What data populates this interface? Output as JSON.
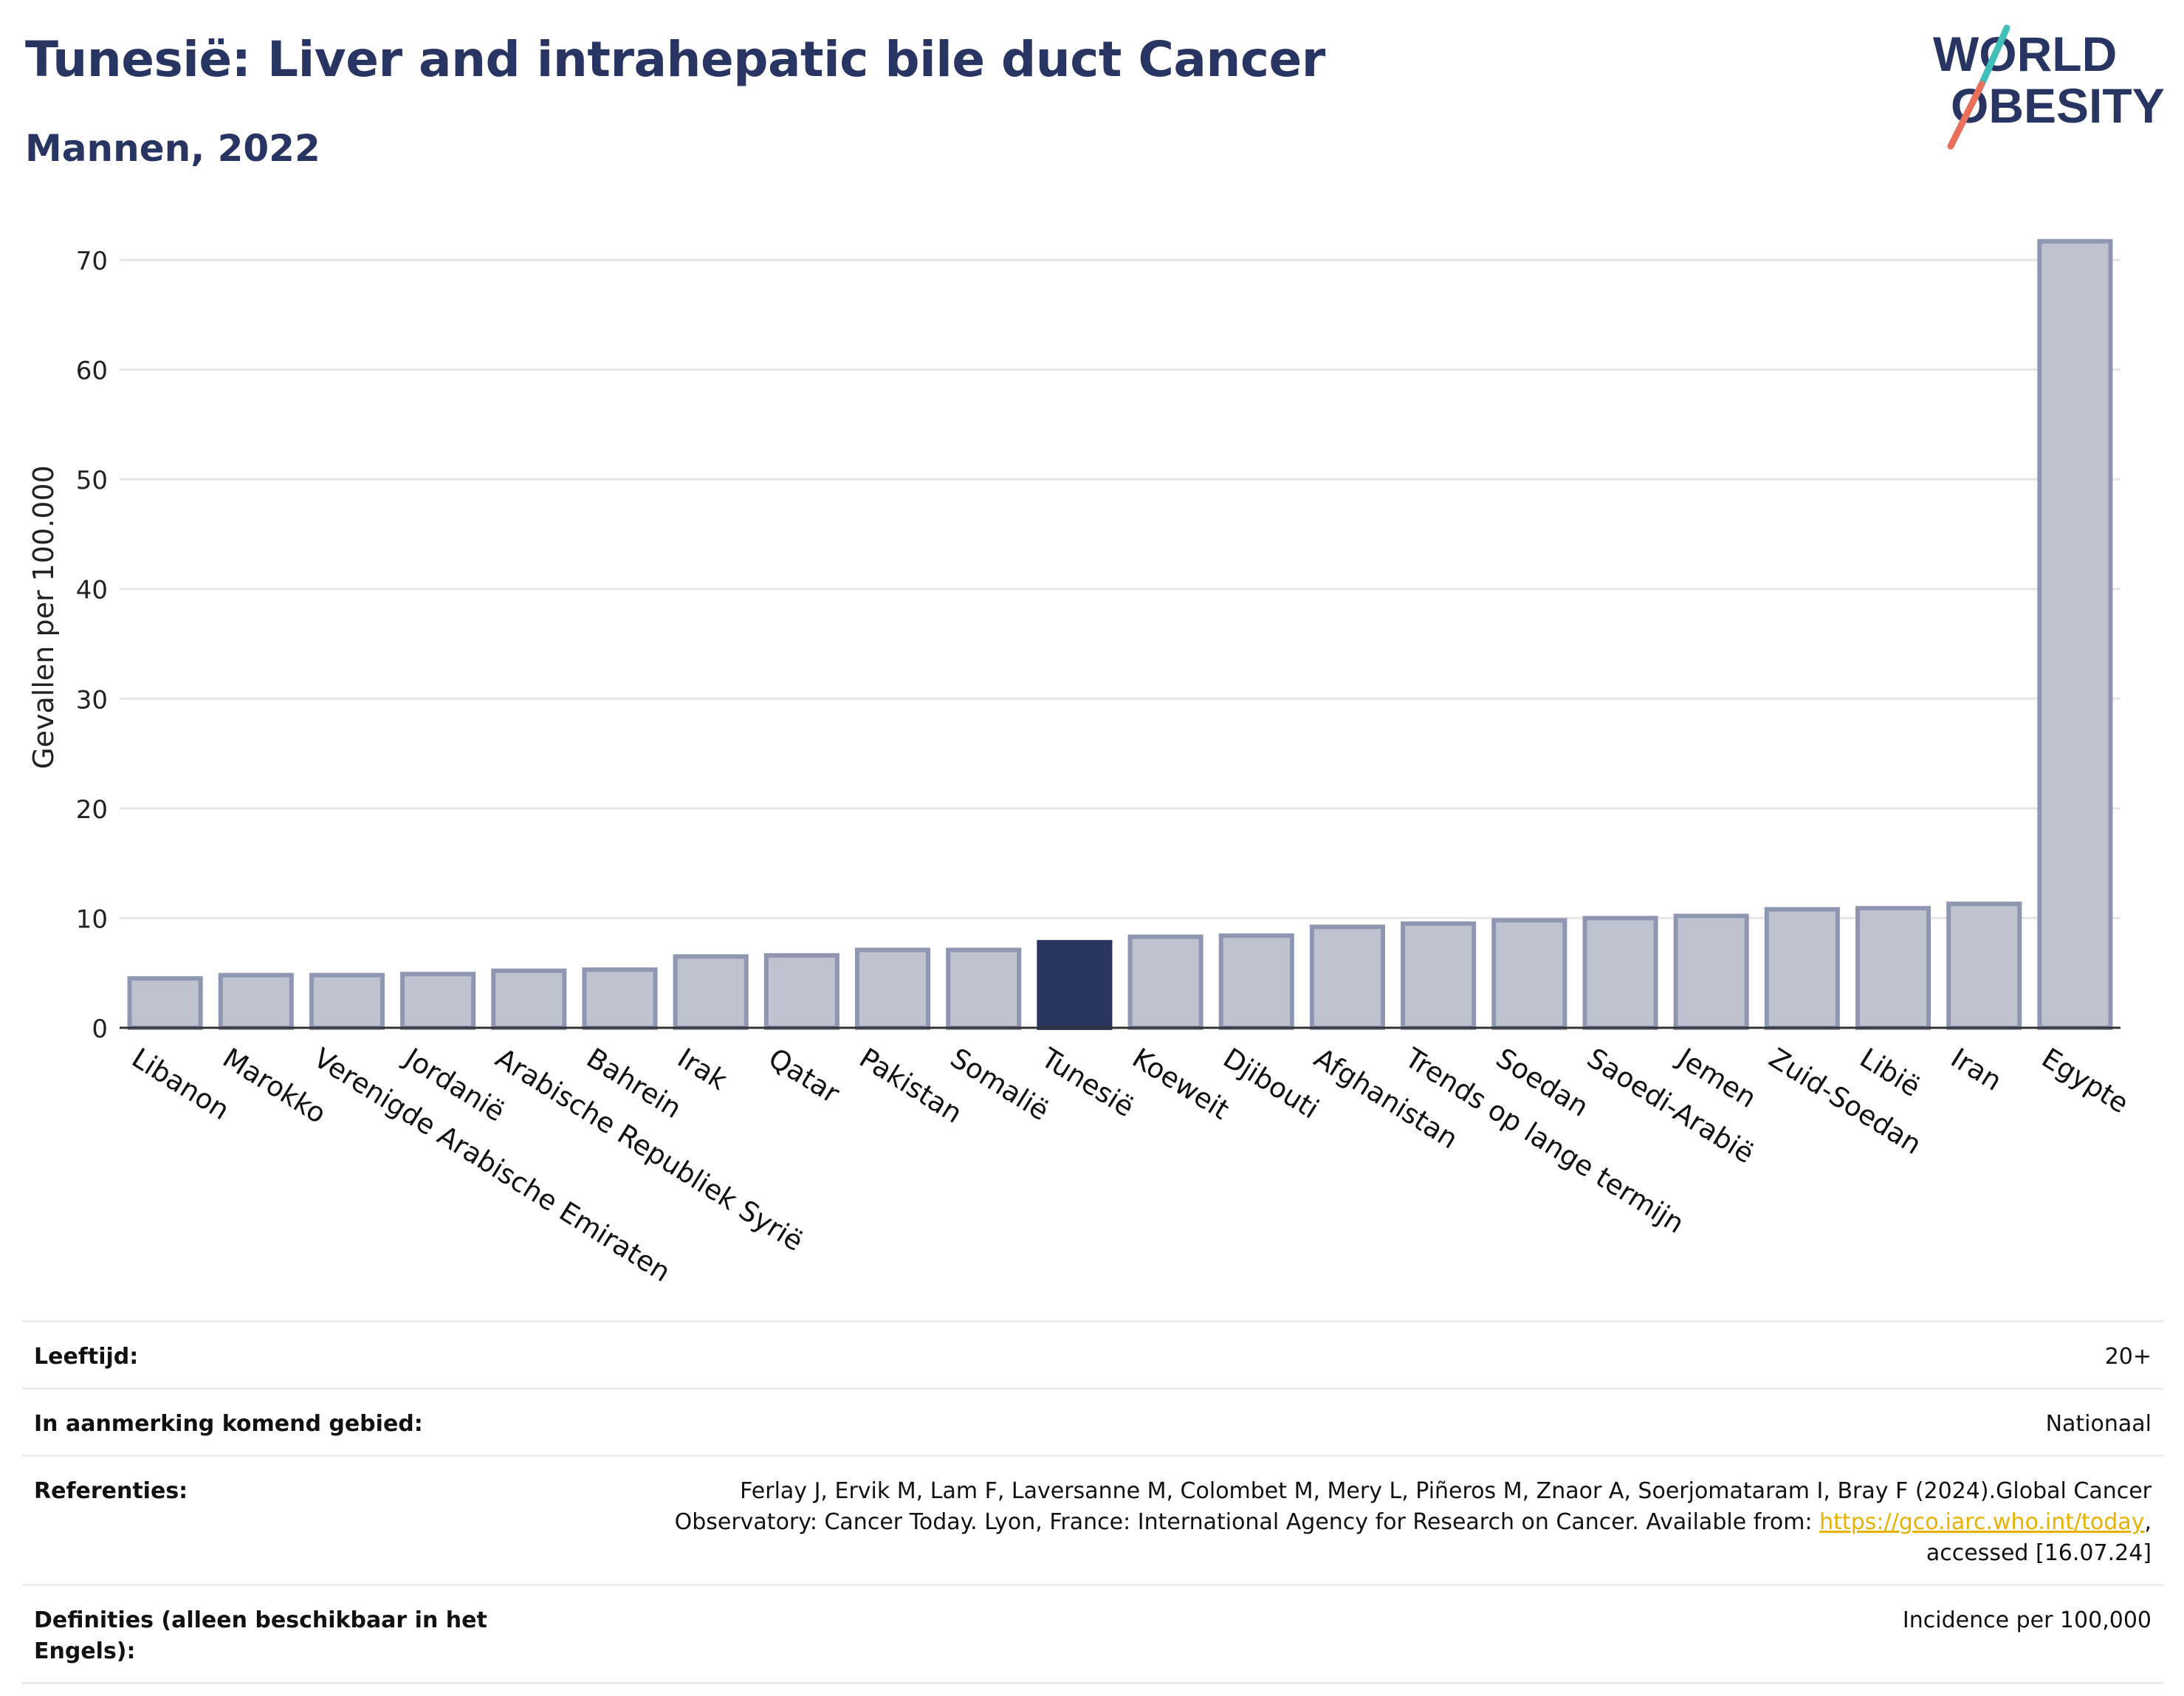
{
  "title": "Tunesië: Liver and intrahepatic bile duct Cancer",
  "subtitle": "Mannen, 2022",
  "logo": {
    "line1": "WORLD",
    "line2": "OBESITY"
  },
  "colors": {
    "highlight": "#283462",
    "bar": "#bfc3d0",
    "bar_edge": "#8e96b2",
    "title": "#283462",
    "link": "#e8b200"
  },
  "chart_data": {
    "type": "bar",
    "ylabel": "Gevallen per 100.000",
    "ylim": [
      0,
      74
    ],
    "yticks": [
      0,
      10,
      20,
      30,
      40,
      50,
      60,
      70
    ],
    "grid": true,
    "highlight": "Tunesië",
    "categories": [
      "Libanon",
      "Marokko",
      "Verenigde Arabische Emiraten",
      "Jordanië",
      "Arabische Republiek Syrië",
      "Bahrein",
      "Irak",
      "Qatar",
      "Pakistan",
      "Somalië",
      "Tunesië",
      "Koeweit",
      "Djibouti",
      "Afghanistan",
      "Trends op lange termijn",
      "Soedan",
      "Saoedi-Arabië",
      "Jemen",
      "Zuid-Soedan",
      "Libië",
      "Iran",
      "Egypte"
    ],
    "values": [
      4.5,
      4.8,
      4.8,
      4.9,
      5.2,
      5.3,
      6.5,
      6.6,
      7.1,
      7.1,
      7.8,
      8.3,
      8.4,
      9.2,
      9.5,
      9.8,
      10.0,
      10.2,
      10.8,
      10.9,
      11.3,
      71.7
    ]
  },
  "meta": {
    "age_label": "Leeftijd:",
    "age_value": "20+",
    "area_label": "In aanmerking komend gebied:",
    "area_value": "Nationaal",
    "ref_label": "Referenties:",
    "ref_text1": "Ferlay J, Ervik M, Lam F, Laversanne M, Colombet M, Mery L, Piñeros M, Znaor A, Soerjomataram I, Bray F (2024).Global Cancer Observatory: Cancer Today. Lyon, France: International Agency for Research on Cancer. Available from: ",
    "ref_link": "https://gco.iarc.who.int/today",
    "ref_text2": ", accessed [16.07.24]",
    "def_label": "Definities (alleen beschikbaar in het Engels):",
    "def_value": "Incidence per 100,000"
  }
}
